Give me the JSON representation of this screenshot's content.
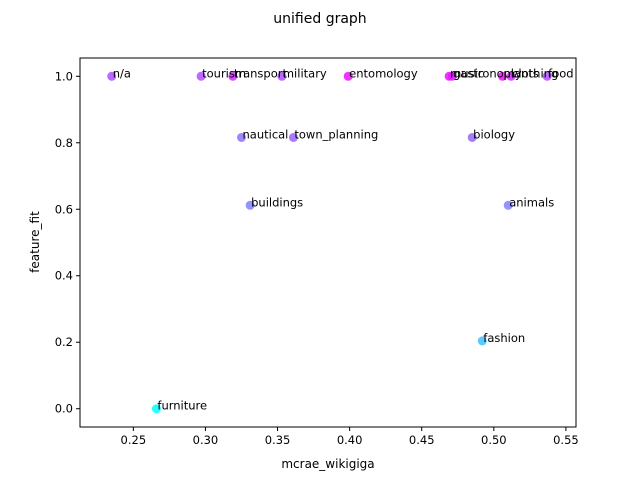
{
  "chart_data": {
    "type": "scatter",
    "title": "unified graph",
    "xlabel": "mcrae_wikigiga",
    "ylabel": "feature_fit",
    "xlim": [
      0.213,
      0.557
    ],
    "ylim": [
      -0.055,
      1.055
    ],
    "xticks": [
      0.25,
      0.3,
      0.35,
      0.4,
      0.45,
      0.5,
      0.55
    ],
    "xtick_labels": [
      "0.25",
      "0.30",
      "0.35",
      "0.40",
      "0.45",
      "0.50",
      "0.55"
    ],
    "yticks": [
      0.0,
      0.2,
      0.4,
      0.6,
      0.8,
      1.0
    ],
    "ytick_labels": [
      "0.0",
      "0.2",
      "0.4",
      "0.6",
      "0.8",
      "1.0"
    ],
    "grid": false,
    "colormap": "cool",
    "points": [
      {
        "label": "n/a",
        "x": 0.235,
        "y": 1.0,
        "color": "#b24dff"
      },
      {
        "label": "tourism",
        "x": 0.297,
        "y": 1.0,
        "color": "#b24dff"
      },
      {
        "label": "transport",
        "x": 0.319,
        "y": 1.0,
        "color": "#d42bff"
      },
      {
        "label": "military",
        "x": 0.353,
        "y": 1.0,
        "color": "#b24dff"
      },
      {
        "label": "entomology",
        "x": 0.399,
        "y": 1.0,
        "color": "#f00fff"
      },
      {
        "label": "music",
        "x": 0.469,
        "y": 1.0,
        "color": "#f00fff"
      },
      {
        "label": "gastronomy",
        "x": 0.471,
        "y": 1.0,
        "color": "#e41bff"
      },
      {
        "label": "plants",
        "x": 0.506,
        "y": 1.0,
        "color": "#f00fff"
      },
      {
        "label": "clothing",
        "x": 0.512,
        "y": 1.0,
        "color": "#d42bff"
      },
      {
        "label": "food",
        "x": 0.537,
        "y": 1.0,
        "color": "#b24dff"
      },
      {
        "label": "nautical",
        "x": 0.325,
        "y": 0.816,
        "color": "#8f70ff"
      },
      {
        "label": "town_planning",
        "x": 0.361,
        "y": 0.816,
        "color": "#9a65ff"
      },
      {
        "label": "biology",
        "x": 0.485,
        "y": 0.816,
        "color": "#9a65ff"
      },
      {
        "label": "buildings",
        "x": 0.331,
        "y": 0.612,
        "color": "#7f80ff"
      },
      {
        "label": "animals",
        "x": 0.51,
        "y": 0.612,
        "color": "#7f80ff"
      },
      {
        "label": "fashion",
        "x": 0.492,
        "y": 0.204,
        "color": "#3fc0ff"
      },
      {
        "label": "furniture",
        "x": 0.266,
        "y": 0.0,
        "color": "#00ffff"
      }
    ]
  }
}
